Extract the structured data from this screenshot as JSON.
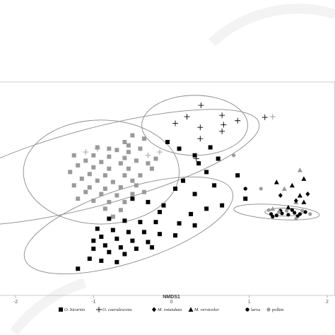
{
  "chart_data": {
    "type": "scatter",
    "xlabel": "NMDS1",
    "xlim": [
      -2.2,
      2.1
    ],
    "ylim": [
      -1.6,
      1.6
    ],
    "grid": false,
    "legend_placement": "bottom",
    "x_ticks": [
      "-2",
      "-1",
      "0",
      "1",
      "2"
    ],
    "legend": [
      {
        "label": "O. bicornis",
        "marker": "square",
        "color": "#000000",
        "italic": true
      },
      {
        "label": "O. caerulescens",
        "marker": "plus",
        "color": "#000000",
        "italic": true
      },
      {
        "label": "M. rotundata",
        "marker": "diamond",
        "color": "#000000",
        "italic": true
      },
      {
        "label": "M. versicolor",
        "marker": "triangle",
        "color": "#000000",
        "italic": true
      },
      {
        "label": "larva",
        "marker": "circle",
        "color": "#000000",
        "italic": false
      },
      {
        "label": "pollen",
        "marker": "circle",
        "color": "#9a9a9a",
        "italic": false
      }
    ],
    "colors": {
      "larva": "#000000",
      "pollen": "#9a9a9a",
      "ellipse": "#8a8a8a"
    },
    "ellipses": [
      {
        "cx": -1.0,
        "cy": 0.32,
        "rx": 2.2,
        "ry": 0.58,
        "angle_deg": 15
      },
      {
        "cx": -0.9,
        "cy": 0.25,
        "rx": 1.0,
        "ry": 0.78,
        "angle_deg": 0
      },
      {
        "cx": 0.3,
        "cy": 0.95,
        "rx": 0.68,
        "ry": 0.45,
        "angle_deg": 0
      },
      {
        "cx": -0.55,
        "cy": -0.55,
        "rx": 1.4,
        "ry": 0.55,
        "angle_deg": 18
      },
      {
        "cx": 1.35,
        "cy": -0.35,
        "rx": 0.55,
        "ry": 0.11,
        "angle_deg": -4
      },
      {
        "cx": 1.45,
        "cy": -0.35,
        "rx": 0.25,
        "ry": 0.06,
        "angle_deg": 0
      }
    ],
    "series": [
      {
        "name": "O. caerulescens",
        "marker": "plus",
        "color": "#000000",
        "points": [
          [
            0.38,
            1.25
          ],
          [
            0.2,
            1.08
          ],
          [
            0.65,
            1.1
          ],
          [
            0.85,
            1.02
          ],
          [
            0.67,
            0.96
          ],
          [
            0.05,
            0.98
          ],
          [
            0.37,
            0.92
          ],
          [
            0.65,
            0.86
          ],
          [
            0.37,
            0.75
          ],
          [
            0.32,
            0.45
          ],
          [
            1.2,
            1.07
          ]
        ]
      },
      {
        "name": "O. caerulescens",
        "marker": "plus",
        "color": "#9a9a9a",
        "points": [
          [
            -1.1,
            0.55
          ],
          [
            -0.95,
            0.6
          ],
          [
            -0.3,
            0.5
          ],
          [
            -0.15,
            0.55
          ],
          [
            1.3,
            1.08
          ]
        ]
      },
      {
        "name": "O. bicornis",
        "marker": "square",
        "color": "#9a9a9a",
        "points": [
          [
            -0.5,
            0.8
          ],
          [
            -0.35,
            0.75
          ],
          [
            -0.6,
            0.7
          ],
          [
            -0.8,
            0.6
          ],
          [
            -0.7,
            0.58
          ],
          [
            -0.55,
            0.55
          ],
          [
            -1.25,
            0.5
          ],
          [
            -1.0,
            0.5
          ],
          [
            -0.8,
            0.48
          ],
          [
            -0.6,
            0.46
          ],
          [
            -1.1,
            0.42
          ],
          [
            -0.9,
            0.4
          ],
          [
            -0.65,
            0.38
          ],
          [
            -0.3,
            0.38
          ],
          [
            -1.2,
            0.35
          ],
          [
            -1.0,
            0.32
          ],
          [
            -0.8,
            0.3
          ],
          [
            -0.55,
            0.3
          ],
          [
            -1.3,
            0.25
          ],
          [
            -1.05,
            0.22
          ],
          [
            -0.85,
            0.2
          ],
          [
            -0.6,
            0.2
          ],
          [
            -1.15,
            0.15
          ],
          [
            -0.95,
            0.12
          ],
          [
            -0.75,
            0.1
          ],
          [
            -0.5,
            0.12
          ],
          [
            -1.25,
            0.05
          ],
          [
            -1.05,
            0.02
          ],
          [
            -0.85,
            0.0
          ],
          [
            -0.65,
            0.02
          ],
          [
            -0.45,
            0.05
          ],
          [
            -1.1,
            -0.05
          ],
          [
            -0.9,
            -0.08
          ],
          [
            -0.7,
            -0.1
          ],
          [
            -0.5,
            -0.08
          ],
          [
            -1.0,
            -0.18
          ],
          [
            -0.8,
            -0.2
          ],
          [
            -0.6,
            -0.2
          ],
          [
            -0.85,
            -0.3
          ],
          [
            -0.65,
            -0.32
          ],
          [
            -0.75,
            -0.42
          ],
          [
            -0.95,
            0.62
          ],
          [
            -0.4,
            0.6
          ],
          [
            -0.2,
            0.45
          ],
          [
            -0.25,
            0.3
          ],
          [
            -0.4,
            0.2
          ],
          [
            -0.35,
            -0.05
          ],
          [
            -1.2,
            -0.15
          ],
          [
            -0.55,
            0.65
          ],
          [
            -0.45,
            0.42
          ]
        ]
      },
      {
        "name": "O. bicornis",
        "marker": "square",
        "color": "#000000",
        "points": [
          [
            0.1,
            0.6
          ],
          [
            0.3,
            0.5
          ],
          [
            0.6,
            0.45
          ],
          [
            0.35,
            0.38
          ],
          [
            0.45,
            0.25
          ],
          [
            0.15,
            0.12
          ],
          [
            0.05,
            0.0
          ],
          [
            0.55,
            0.05
          ],
          [
            0.3,
            -0.08
          ],
          [
            -0.5,
            -0.15
          ],
          [
            -0.3,
            -0.2
          ],
          [
            -0.1,
            -0.25
          ],
          [
            -0.8,
            -0.45
          ],
          [
            -0.6,
            -0.48
          ],
          [
            -0.4,
            -0.5
          ],
          [
            -0.2,
            -0.5
          ],
          [
            0.1,
            -0.52
          ],
          [
            0.3,
            -0.55
          ],
          [
            -0.95,
            -0.6
          ],
          [
            -0.75,
            -0.62
          ],
          [
            -0.55,
            -0.65
          ],
          [
            -0.35,
            -0.65
          ],
          [
            -0.15,
            -0.68
          ],
          [
            0.05,
            -0.7
          ],
          [
            -0.9,
            -0.72
          ],
          [
            -0.7,
            -0.75
          ],
          [
            -0.5,
            -0.78
          ],
          [
            -0.3,
            -0.8
          ],
          [
            -0.85,
            -0.85
          ],
          [
            -0.65,
            -0.88
          ],
          [
            -0.45,
            -0.9
          ],
          [
            -0.25,
            -0.88
          ],
          [
            -1.0,
            -0.9
          ],
          [
            -0.8,
            -0.95
          ],
          [
            -0.6,
            -0.98
          ],
          [
            -1.05,
            -1.05
          ],
          [
            -0.9,
            -1.08
          ],
          [
            -0.7,
            -1.1
          ],
          [
            -1.2,
            -1.2
          ],
          [
            -1.0,
            -0.78
          ],
          [
            0.25,
            -0.38
          ],
          [
            0.45,
            -0.3
          ],
          [
            0.85,
            0.2
          ],
          [
            0.5,
            0.62
          ],
          [
            -0.05,
            0.7
          ],
          [
            0.95,
            -0.15
          ],
          [
            0.65,
            -0.25
          ],
          [
            -0.15,
            -0.35
          ]
        ]
      },
      {
        "name": "M. versicolor",
        "marker": "triangle",
        "color": "#000000",
        "points": [
          [
            1.35,
            0.1
          ],
          [
            1.55,
            0.05
          ],
          [
            1.7,
            0.15
          ],
          [
            1.65,
            -0.1
          ],
          [
            1.7,
            -0.2
          ],
          [
            1.5,
            -0.28
          ]
        ]
      },
      {
        "name": "M. versicolor",
        "marker": "triangle",
        "color": "#9a9a9a",
        "points": [
          [
            1.65,
            0.28
          ],
          [
            1.45,
            0.0
          ],
          [
            1.3,
            -0.3
          ],
          [
            1.6,
            -0.2
          ]
        ]
      },
      {
        "name": "M. rotundata",
        "marker": "diamond",
        "color": "#000000",
        "points": [
          [
            1.4,
            -0.1
          ],
          [
            1.6,
            -0.18
          ],
          [
            1.75,
            -0.08
          ]
        ]
      },
      {
        "name": "larva",
        "marker": "circle",
        "color": "#000000",
        "points": [
          [
            1.28,
            -0.38
          ],
          [
            1.35,
            -0.4
          ],
          [
            1.42,
            -0.37
          ],
          [
            1.5,
            -0.39
          ],
          [
            1.58,
            -0.36
          ],
          [
            1.65,
            -0.38
          ],
          [
            1.72,
            -0.35
          ],
          [
            1.4,
            -0.33
          ],
          [
            1.55,
            -0.32
          ],
          [
            1.3,
            -0.42
          ],
          [
            1.62,
            -0.41
          ],
          [
            0.95,
            -0.0
          ]
        ]
      },
      {
        "name": "pollen",
        "marker": "circle",
        "color": "#9a9a9a",
        "points": [
          [
            1.25,
            -0.32
          ],
          [
            1.38,
            -0.35
          ],
          [
            1.48,
            -0.33
          ],
          [
            1.68,
            -0.33
          ],
          [
            1.78,
            -0.38
          ],
          [
            1.6,
            -0.45
          ],
          [
            0.8,
            0.5
          ],
          [
            1.15,
            -0.0
          ]
        ]
      }
    ]
  }
}
